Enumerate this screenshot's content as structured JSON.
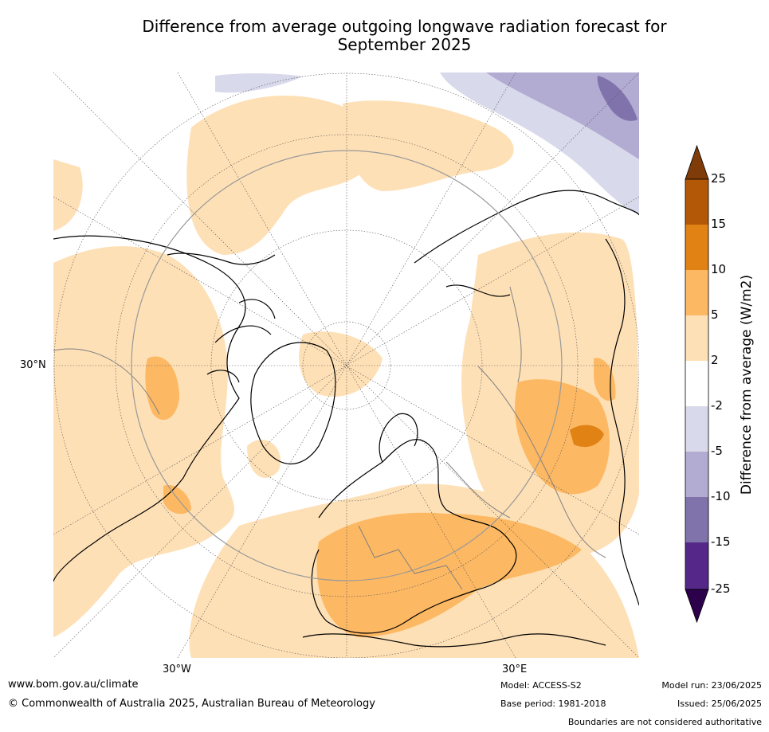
{
  "title_line1": "Difference from average outgoing longwave radiation forecast for",
  "title_line2": "September 2025",
  "axis_labels": {
    "lat_30n": "30°N",
    "lon_30w": "30°W",
    "lon_30e": "30°E"
  },
  "colorbar": {
    "label": "Difference from average (W/m2)",
    "ticks": [
      "25",
      "15",
      "10",
      "5",
      "2",
      "-2",
      "-5",
      "-10",
      "-15",
      "-25"
    ],
    "colors": {
      "gt25": "#7f3b08",
      "15_25": "#b35806",
      "10_15": "#e08214",
      "5_10": "#fdb863",
      "2_5": "#fee0b6",
      "m2_2": "#ffffff",
      "m5_m2": "#d8daeb",
      "m10_m5": "#b2abd2",
      "m15_m10": "#8073ac",
      "m25_m15": "#542788",
      "lt_m25": "#2d004b"
    }
  },
  "footer": {
    "website": "www.bom.gov.au/climate",
    "copyright": "© Commonwealth of Australia 2025, Australian Bureau of Meteorology",
    "model": "Model: ACCESS-S2",
    "base_period": "Base period: 1981-2018",
    "model_run": "Model run: 23/06/2025",
    "issued": "Issued: 25/06/2025",
    "disclaimer": "Boundaries are not considered authoritative"
  }
}
